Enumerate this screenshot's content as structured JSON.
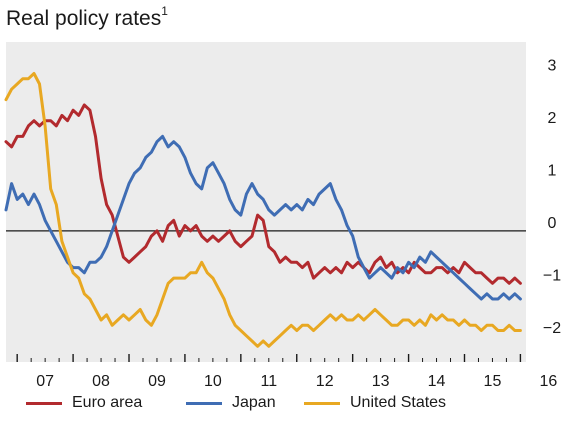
{
  "title": "Real policy rates",
  "title_footnote": "1",
  "colors": {
    "euro": "#b22a2e",
    "japan": "#3f6db4",
    "us": "#e8a822",
    "plot_bg": "#ececec",
    "zero_line": "#1a1a1a"
  },
  "chart_data": {
    "type": "line",
    "title": "Real policy rates",
    "xlabel": "",
    "ylabel": "",
    "xlim": [
      2006.8,
      2016.1
    ],
    "ylim": [
      -2.5,
      3.6
    ],
    "y_ticks": [
      -2,
      -1,
      0,
      1,
      2,
      3
    ],
    "x_ticks": [
      "07",
      "08",
      "09",
      "10",
      "11",
      "12",
      "13",
      "14",
      "15",
      "16"
    ],
    "grid": false,
    "legend_position": "bottom",
    "zero_line": true,
    "series": [
      {
        "name": "Euro area",
        "color": "#b22a2e",
        "x": [
          2006.8,
          2006.9,
          2007.0,
          2007.1,
          2007.2,
          2007.3,
          2007.4,
          2007.5,
          2007.6,
          2007.7,
          2007.8,
          2007.9,
          2008.0,
          2008.1,
          2008.2,
          2008.3,
          2008.4,
          2008.5,
          2008.6,
          2008.7,
          2008.8,
          2008.9,
          2009.0,
          2009.1,
          2009.2,
          2009.3,
          2009.4,
          2009.5,
          2009.6,
          2009.7,
          2009.8,
          2009.9,
          2010.0,
          2010.1,
          2010.2,
          2010.3,
          2010.4,
          2010.5,
          2010.6,
          2010.7,
          2010.8,
          2010.9,
          2011.0,
          2011.1,
          2011.2,
          2011.3,
          2011.4,
          2011.5,
          2011.6,
          2011.7,
          2011.8,
          2011.9,
          2012.0,
          2012.1,
          2012.2,
          2012.3,
          2012.4,
          2012.5,
          2012.6,
          2012.7,
          2012.8,
          2012.9,
          2013.0,
          2013.1,
          2013.2,
          2013.3,
          2013.4,
          2013.5,
          2013.6,
          2013.7,
          2013.8,
          2013.9,
          2014.0,
          2014.1,
          2014.2,
          2014.3,
          2014.4,
          2014.5,
          2014.6,
          2014.7,
          2014.8,
          2014.9,
          2015.0,
          2015.1,
          2015.2,
          2015.3,
          2015.4,
          2015.5,
          2015.6,
          2015.7,
          2015.8,
          2015.9,
          2016.0
        ],
        "values": [
          1.7,
          1.6,
          1.8,
          1.8,
          2.0,
          2.1,
          2.0,
          2.1,
          2.1,
          2.0,
          2.2,
          2.1,
          2.3,
          2.2,
          2.4,
          2.3,
          1.8,
          1.0,
          0.5,
          0.3,
          -0.1,
          -0.5,
          -0.6,
          -0.5,
          -0.4,
          -0.3,
          -0.1,
          0.0,
          -0.2,
          0.1,
          0.2,
          -0.1,
          0.1,
          0.0,
          0.1,
          -0.1,
          -0.2,
          -0.1,
          -0.2,
          -0.1,
          0.0,
          -0.2,
          -0.3,
          -0.2,
          -0.1,
          0.3,
          0.2,
          -0.3,
          -0.4,
          -0.6,
          -0.5,
          -0.6,
          -0.6,
          -0.7,
          -0.6,
          -0.9,
          -0.8,
          -0.7,
          -0.8,
          -0.7,
          -0.8,
          -0.6,
          -0.7,
          -0.6,
          -0.7,
          -0.8,
          -0.6,
          -0.5,
          -0.7,
          -0.6,
          -0.8,
          -0.7,
          -0.8,
          -0.6,
          -0.7,
          -0.8,
          -0.8,
          -0.7,
          -0.7,
          -0.8,
          -0.7,
          -0.8,
          -0.6,
          -0.7,
          -0.8,
          -0.8,
          -0.9,
          -1.0,
          -0.9,
          -0.9,
          -1.0,
          -0.9,
          -1.0
        ]
      },
      {
        "name": "Japan",
        "color": "#3f6db4",
        "x": [
          2006.8,
          2006.9,
          2007.0,
          2007.1,
          2007.2,
          2007.3,
          2007.4,
          2007.5,
          2007.6,
          2007.7,
          2007.8,
          2007.9,
          2008.0,
          2008.1,
          2008.2,
          2008.3,
          2008.4,
          2008.5,
          2008.6,
          2008.7,
          2008.8,
          2008.9,
          2009.0,
          2009.1,
          2009.2,
          2009.3,
          2009.4,
          2009.5,
          2009.6,
          2009.7,
          2009.8,
          2009.9,
          2010.0,
          2010.1,
          2010.2,
          2010.3,
          2010.4,
          2010.5,
          2010.6,
          2010.7,
          2010.8,
          2010.9,
          2011.0,
          2011.1,
          2011.2,
          2011.3,
          2011.4,
          2011.5,
          2011.6,
          2011.7,
          2011.8,
          2011.9,
          2012.0,
          2012.1,
          2012.2,
          2012.3,
          2012.4,
          2012.5,
          2012.6,
          2012.7,
          2012.8,
          2012.9,
          2013.0,
          2013.1,
          2013.2,
          2013.3,
          2013.4,
          2013.5,
          2013.6,
          2013.7,
          2013.8,
          2013.9,
          2014.0,
          2014.1,
          2014.2,
          2014.3,
          2014.4,
          2014.5,
          2014.6,
          2014.7,
          2014.8,
          2014.9,
          2015.0,
          2015.1,
          2015.2,
          2015.3,
          2015.4,
          2015.5,
          2015.6,
          2015.7,
          2015.8,
          2015.9,
          2016.0
        ],
        "values": [
          0.4,
          0.9,
          0.6,
          0.7,
          0.5,
          0.7,
          0.5,
          0.2,
          0.0,
          -0.2,
          -0.4,
          -0.6,
          -0.7,
          -0.7,
          -0.8,
          -0.6,
          -0.6,
          -0.5,
          -0.3,
          0.0,
          0.3,
          0.6,
          0.9,
          1.1,
          1.2,
          1.4,
          1.5,
          1.7,
          1.8,
          1.6,
          1.7,
          1.6,
          1.4,
          1.1,
          0.9,
          0.8,
          1.2,
          1.3,
          1.1,
          0.9,
          0.6,
          0.4,
          0.3,
          0.7,
          0.9,
          0.7,
          0.6,
          0.4,
          0.3,
          0.4,
          0.5,
          0.4,
          0.5,
          0.4,
          0.6,
          0.5,
          0.7,
          0.8,
          0.9,
          0.6,
          0.4,
          0.1,
          -0.1,
          -0.5,
          -0.7,
          -0.9,
          -0.8,
          -0.7,
          -0.8,
          -0.9,
          -0.7,
          -0.8,
          -0.6,
          -0.7,
          -0.5,
          -0.6,
          -0.4,
          -0.5,
          -0.6,
          -0.7,
          -0.8,
          -0.9,
          -1.0,
          -1.1,
          -1.2,
          -1.3,
          -1.2,
          -1.3,
          -1.3,
          -1.2,
          -1.3,
          -1.2,
          -1.3
        ]
      },
      {
        "name": "United States",
        "color": "#e8a822",
        "x": [
          2006.8,
          2006.9,
          2007.0,
          2007.1,
          2007.2,
          2007.3,
          2007.4,
          2007.5,
          2007.6,
          2007.7,
          2007.8,
          2007.9,
          2008.0,
          2008.1,
          2008.2,
          2008.3,
          2008.4,
          2008.5,
          2008.6,
          2008.7,
          2008.8,
          2008.9,
          2009.0,
          2009.1,
          2009.2,
          2009.3,
          2009.4,
          2009.5,
          2009.6,
          2009.7,
          2009.8,
          2009.9,
          2010.0,
          2010.1,
          2010.2,
          2010.3,
          2010.4,
          2010.5,
          2010.6,
          2010.7,
          2010.8,
          2010.9,
          2011.0,
          2011.1,
          2011.2,
          2011.3,
          2011.4,
          2011.5,
          2011.6,
          2011.7,
          2011.8,
          2011.9,
          2012.0,
          2012.1,
          2012.2,
          2012.3,
          2012.4,
          2012.5,
          2012.6,
          2012.7,
          2012.8,
          2012.9,
          2013.0,
          2013.1,
          2013.2,
          2013.3,
          2013.4,
          2013.5,
          2013.6,
          2013.7,
          2013.8,
          2013.9,
          2014.0,
          2014.1,
          2014.2,
          2014.3,
          2014.4,
          2014.5,
          2014.6,
          2014.7,
          2014.8,
          2014.9,
          2015.0,
          2015.1,
          2015.2,
          2015.3,
          2015.4,
          2015.5,
          2015.6,
          2015.7,
          2015.8,
          2015.9,
          2016.0
        ],
        "values": [
          2.5,
          2.7,
          2.8,
          2.9,
          2.9,
          3.0,
          2.8,
          2.0,
          0.8,
          0.5,
          -0.2,
          -0.5,
          -0.8,
          -0.9,
          -1.2,
          -1.3,
          -1.5,
          -1.7,
          -1.6,
          -1.8,
          -1.7,
          -1.6,
          -1.7,
          -1.6,
          -1.5,
          -1.7,
          -1.8,
          -1.6,
          -1.3,
          -1.0,
          -0.9,
          -0.9,
          -0.9,
          -0.8,
          -0.8,
          -0.6,
          -0.8,
          -0.9,
          -1.1,
          -1.3,
          -1.6,
          -1.8,
          -1.9,
          -2.0,
          -2.1,
          -2.2,
          -2.1,
          -2.2,
          -2.1,
          -2.0,
          -1.9,
          -1.8,
          -1.9,
          -1.8,
          -1.8,
          -1.9,
          -1.8,
          -1.7,
          -1.6,
          -1.7,
          -1.6,
          -1.7,
          -1.7,
          -1.6,
          -1.7,
          -1.6,
          -1.5,
          -1.6,
          -1.7,
          -1.8,
          -1.8,
          -1.7,
          -1.7,
          -1.8,
          -1.7,
          -1.8,
          -1.6,
          -1.7,
          -1.6,
          -1.7,
          -1.7,
          -1.8,
          -1.7,
          -1.8,
          -1.8,
          -1.9,
          -1.8,
          -1.8,
          -1.9,
          -1.9,
          -1.8,
          -1.9,
          -1.9
        ]
      }
    ]
  },
  "legend": [
    {
      "label": "Euro area",
      "color": "#b22a2e"
    },
    {
      "label": "Japan",
      "color": "#3f6db4"
    },
    {
      "label": "United States",
      "color": "#e8a822"
    }
  ]
}
